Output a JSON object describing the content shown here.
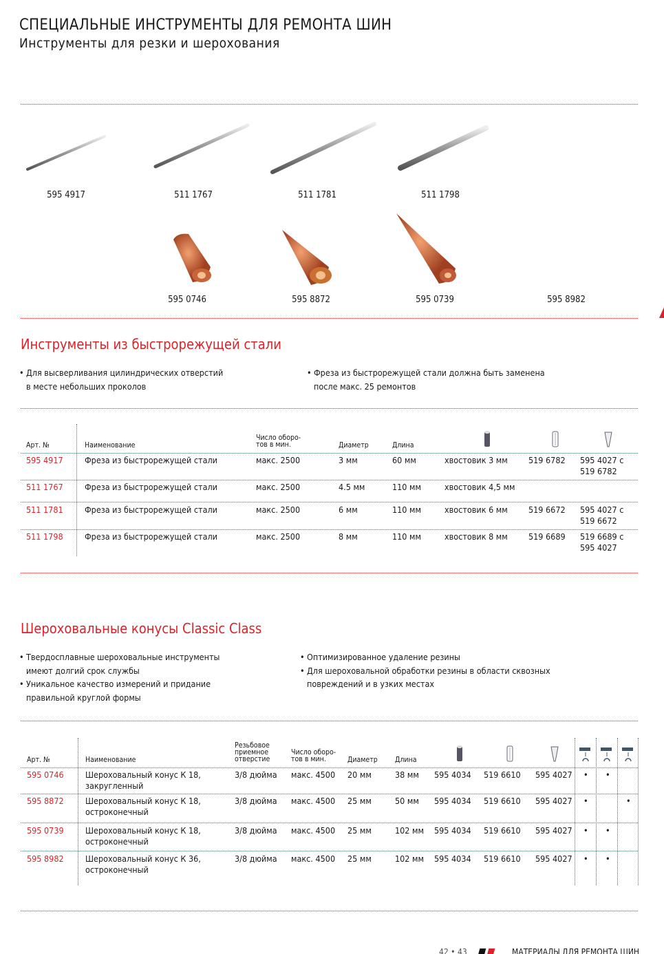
{
  "header": {
    "title": "СПЕЦИАЛЬНЫЕ ИНСТРУМЕНТЫ ДЛЯ РЕМОНТА ШИН",
    "subtitle": "Инструменты для резки и шерохования"
  },
  "products_top": [
    "595 4917",
    "511 1767",
    "511 1781",
    "511 1798"
  ],
  "products_bottom": [
    "595 0746",
    "595 8872",
    "595 0739",
    "595 8982"
  ],
  "section1": {
    "title": "Инструменты из быстрорежущей стали",
    "bullets_left": [
      "Для высверливания цилиндрических отверстий",
      "в месте небольших проколов"
    ],
    "bullets_right": [
      "Фреза из быстрорежущей стали должна быть заменена",
      "после макс. 25 ремонтов"
    ],
    "headers": [
      "Арт. №",
      "Наименование",
      "Число оборо-\nтов в мин.",
      "Диаметр",
      "Длина"
    ],
    "rows": [
      [
        "595 4917",
        "Фреза из быстрорежущей стали",
        "макс. 2500",
        "3 мм",
        "60 мм",
        "хвостовик 3 мм",
        "519 6782",
        "595 4027 с\n519 6782"
      ],
      [
        "511 1767",
        "Фреза из быстрорежущей стали",
        "макс. 2500",
        "4.5 мм",
        "110 мм",
        "хвостовик 4,5 мм",
        "",
        ""
      ],
      [
        "511 1781",
        "Фреза из быстрорежущей стали",
        "макс. 2500",
        "6 мм",
        "110 мм",
        "хвостовик 6 мм",
        "519 6672",
        "595 4027 с\n519 6672"
      ],
      [
        "511 1798",
        "Фреза из быстрорежущей стали",
        "макс. 2500",
        "8 мм",
        "110 мм",
        "хвостовик 8 мм",
        "519 6689",
        "519 6689 с\n595 4027"
      ]
    ]
  },
  "section2": {
    "title": "Шероховальные конусы Classic Class",
    "bullets_left": [
      [
        "Твердосплавные шероховальные инструменты",
        "имеют долгий срок службы"
      ],
      [
        "Уникальное качество измерений и придание",
        "правильной круглой формы"
      ]
    ],
    "bullets_right": [
      [
        "Оптимизированное удаление резины"
      ],
      [
        "Для шероховальной обработки резины в области сквозных",
        "повреждений и в узких местах"
      ]
    ],
    "headers": [
      "Арт. №",
      "Наименование",
      "Резьбовое\nприемное\nотверстие",
      "Число оборо-\nтов в мин.",
      "Диаметр",
      "Длина"
    ],
    "rows": [
      [
        "595 0746",
        "Шероховальный конус К 18,\nзакругленный",
        "3/8 дюйма",
        "макс. 4500",
        "20 мм",
        "38 мм",
        "595 4034",
        "519 6610",
        "595 4027",
        "•",
        "•",
        ""
      ],
      [
        "595 8872",
        "Шероховальный конус К 18,\nостроконечный",
        "3/8 дюйма",
        "макс. 4500",
        "25 мм",
        "50 мм",
        "595 4034",
        "519 6610",
        "595 4027",
        "•",
        "",
        "•"
      ],
      [
        "595 0739",
        "Шероховальный конус К 18,\nостроконечный",
        "3/8 дюйма",
        "макс. 4500",
        "25 мм",
        "102 мм",
        "595 4034",
        "519 6610",
        "595 4027",
        "•",
        "•",
        ""
      ],
      [
        "595 8982",
        "Шероховальный конус К 36,\nостроконечный",
        "3/8 дюйма",
        "макс. 4500",
        "25 мм",
        "102 мм",
        "595 4034",
        "519 6610",
        "595 4027",
        "•",
        "•",
        ""
      ]
    ]
  },
  "footer": {
    "pages": "42 • 43",
    "title": "МАТЕРИАЛЫ ДЛЯ РЕМОНТА ШИН"
  },
  "colors": {
    "accent": "#d9232a",
    "rule": "#d22",
    "grid": "#4a7a70"
  }
}
